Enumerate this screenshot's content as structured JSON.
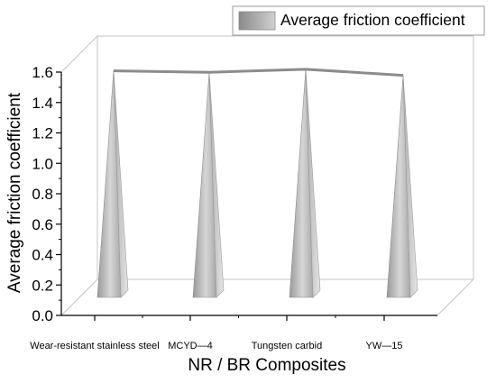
{
  "chart_data": {
    "type": "bar",
    "bar_shape": "3d-pyramid",
    "categories": [
      "Wear-resistant stainless steel",
      "MCYD—4",
      "Tungsten carbid",
      "YW—15"
    ],
    "series": [
      {
        "name": "Average friction coefficient",
        "values": [
          1.49,
          1.48,
          1.5,
          1.46
        ]
      }
    ],
    "connecting_line": true,
    "xlabel": "NR / BR Composites",
    "ylabel": "Average friction coefficient",
    "ylim": [
      0,
      1.6
    ],
    "yticks": [
      "0.0",
      "0.2",
      "0.4",
      "0.6",
      "0.8",
      "1.0",
      "1.2",
      "1.4",
      "1.6"
    ],
    "grid": false,
    "legend": "top-right",
    "colors": {
      "bar_light": "#d8d8d8",
      "bar_dark": "#8a8a8a",
      "line": "#8c8c8c",
      "wall": "#c8c8c8"
    }
  }
}
